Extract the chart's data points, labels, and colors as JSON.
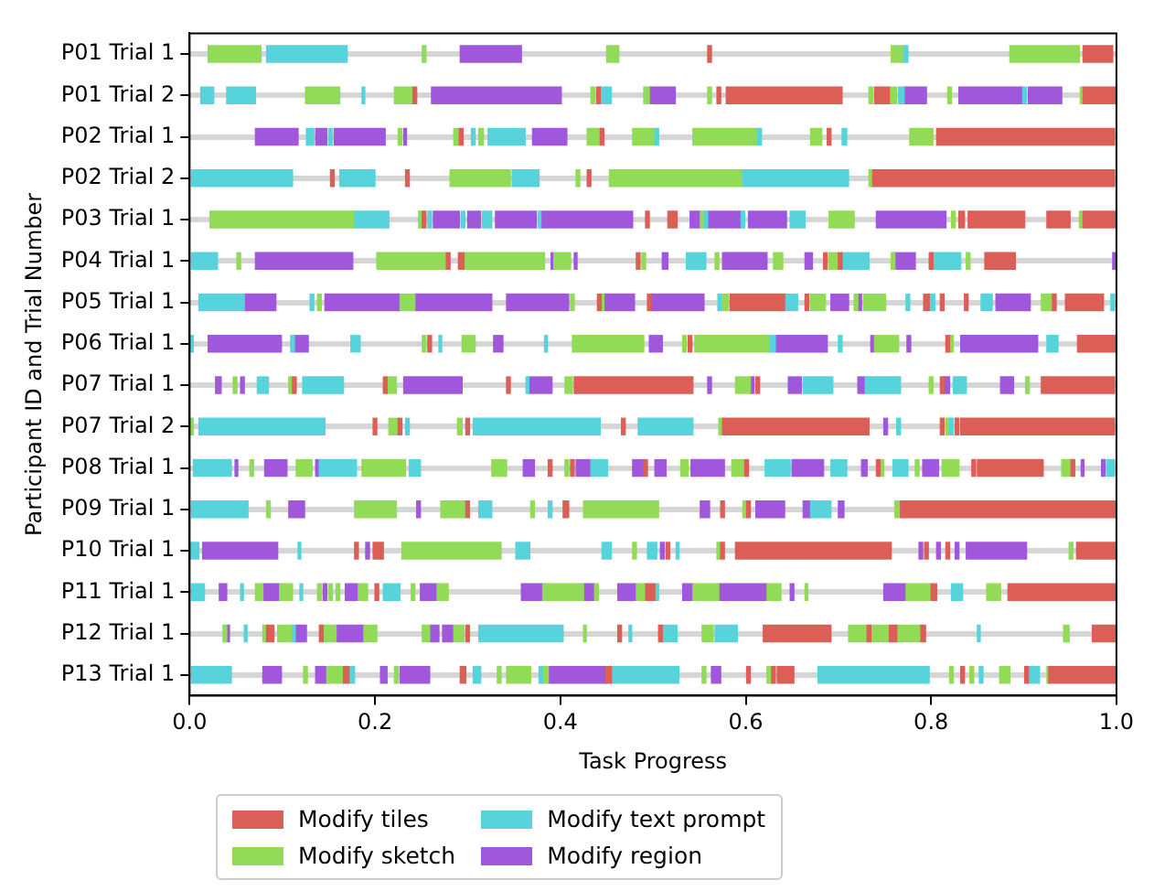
{
  "chart_data": {
    "type": "bar",
    "orientation": "horizontal",
    "xlabel": "Task Progress",
    "ylabel": "Participant ID and Trial Number",
    "categories": [
      "P01 Trial 1",
      "P01 Trial 2",
      "P02 Trial 1",
      "P02 Trial 2",
      "P03 Trial 1",
      "P04 Trial 1",
      "P05 Trial 1",
      "P06 Trial 1",
      "P07 Trial 1",
      "P07 Trial 2",
      "P08 Trial 1",
      "P09 Trial 1",
      "P10 Trial 1",
      "P11 Trial 1",
      "P12 Trial 1",
      "P13 Trial 1"
    ],
    "xlim": [
      0,
      1
    ],
    "xticks": [
      {
        "value": 0,
        "label": "0.0"
      },
      {
        "value": 0.2,
        "label": "0.2"
      },
      {
        "value": 0.4,
        "label": "0.4"
      },
      {
        "value": 0.6,
        "label": "0.6"
      },
      {
        "value": 0.8,
        "label": "0.8"
      },
      {
        "value": 1,
        "label": "1.0"
      }
    ],
    "grid": "y",
    "legend": "bottom",
    "series": [
      {
        "name": "Modify tiles",
        "color": "#db5f57",
        "base": [
          0.559,
          0.241,
          0.291,
          0.152,
          0.251,
          0.277,
          0.44,
          0.257,
          0.111,
          0.198,
          0.387,
          0.298,
          0.178,
          0.2,
          0.083,
          0.166
        ],
        "values": [
          0.004,
          0.004,
          0.004,
          0.004,
          0.004,
          0.004,
          0.004,
          0.004,
          0.004,
          0.004,
          0.004,
          0.004,
          0.004,
          0.004,
          0.008,
          0.006
        ]
      },
      {
        "color": "#db5f57",
        "base": [
          0.964,
          0.439,
          0.443,
          0.233,
          0.492,
          0.29,
          0.494,
          0.538,
          0.209,
          0.225,
          0.411,
          0.403,
          0.198,
          0.492,
          0.14,
          0.292
        ],
        "values": [
          0.032,
          0.004,
          0.004,
          0.004,
          0.004,
          0.006,
          0.004,
          0.004,
          0.004,
          0.004,
          0.004,
          0.006,
          0.011,
          0.01,
          0.004,
          0.006
        ]
      },
      {
        "color": "#db5f57",
        "base": [
          null,
          0.569,
          0.688,
          0.429,
          0.516,
          0.482,
          0.583,
          0.816,
          0.342,
          0.298,
          0.49,
          0.573,
          0.514,
          0.8,
          0.298,
          0.449
        ],
        "values": [
          null,
          0.004,
          0.004,
          0.004,
          0.01,
          0.004,
          0.059,
          0.004,
          0.004,
          0.004,
          0.004,
          0.004,
          0.004,
          0.006,
          0.004,
          0.006
        ]
      },
      {
        "color": "#db5f57",
        "base": [
          null,
          0.579,
          0.806,
          0.737,
          0.83,
          0.684,
          0.664,
          0.958,
          0.415,
          0.466,
          0.599,
          0.601,
          0.573,
          0.883,
          0.462,
          0.601
        ],
        "values": [
          null,
          0.125,
          0.192,
          0.261,
          0.006,
          0.004,
          0.004,
          0.042,
          0.128,
          0.004,
          0.004,
          0.004,
          0.004,
          0.117,
          0.004,
          0.004
        ]
      },
      {
        "color": "#db5f57",
        "base": [
          null,
          0.739,
          null,
          null,
          0.84,
          0.7,
          0.792,
          null,
          0.611,
          0.575,
          0.741,
          0.767,
          0.589,
          null,
          0.506,
          0.628
        ],
        "values": [
          null,
          0.016,
          null,
          null,
          0.061,
          0.004,
          0.006,
          null,
          0.004,
          0.158,
          0.004,
          0.233,
          0.168,
          null,
          0.004,
          0.004
        ]
      },
      {
        "color": "#db5f57",
        "base": [
          null,
          0.964,
          null,
          null,
          0.925,
          0.798,
          0.81,
          null,
          0.81,
          0.81,
          0.844,
          null,
          0.793,
          null,
          0.619,
          0.634
        ],
        "values": [
          null,
          0.036,
          null,
          null,
          0.025,
          0.004,
          0.004,
          null,
          0.004,
          0.004,
          0.004,
          null,
          0.004,
          null,
          0.073,
          0.018
        ]
      },
      {
        "color": "#db5f57",
        "base": [
          null,
          null,
          null,
          null,
          0.964,
          0.858,
          0.836,
          null,
          0.919,
          0.826,
          0.85,
          null,
          0.816,
          null,
          0.731,
          0.832
        ],
        "values": [
          null,
          null,
          null,
          null,
          0.036,
          0.033,
          0.004,
          null,
          0.079,
          0.004,
          0.071,
          null,
          0.004,
          null,
          0.004,
          0.004
        ]
      },
      {
        "color": "#db5f57",
        "base": [
          null,
          null,
          null,
          null,
          null,
          null,
          0.931,
          null,
          null,
          0.832,
          0.951,
          null,
          0.957,
          null,
          0.755,
          0.901
        ],
        "values": [
          null,
          null,
          null,
          null,
          null,
          null,
          0.004,
          null,
          null,
          0.166,
          0.004,
          null,
          0.043,
          null,
          0.008,
          0.004
        ]
      },
      {
        "color": "#db5f57",
        "base": [
          null,
          null,
          null,
          null,
          null,
          null,
          0.945,
          null,
          null,
          null,
          null,
          null,
          null,
          null,
          0.789,
          0.927
        ],
        "values": [
          null,
          null,
          null,
          null,
          null,
          null,
          0.041,
          null,
          null,
          null,
          null,
          null,
          null,
          null,
          0.005,
          0.073
        ]
      },
      {
        "color": "#db5f57",
        "base": [
          null,
          null,
          null,
          null,
          null,
          null,
          null,
          null,
          null,
          null,
          null,
          null,
          null,
          null,
          0.974,
          null
        ],
        "values": [
          null,
          null,
          null,
          null,
          null,
          null,
          null,
          null,
          null,
          null,
          null,
          null,
          null,
          null,
          0.026,
          null
        ]
      },
      {
        "name": "Modify text prompt",
        "color": "#57d3db",
        "base": [
          0.083,
          0.012,
          0.126,
          0.002,
          0.178,
          0.002,
          0.01,
          0,
          0.073,
          0.01,
          0.004,
          0.002,
          0,
          0.002,
          0.059,
          0.002
        ],
        "values": [
          0.087,
          0.014,
          0.008,
          0.109,
          0.037,
          0.028,
          0.049,
          0.004,
          0.012,
          0.136,
          0.041,
          0.061,
          0.01,
          0.014,
          0.003,
          0.043
        ]
      },
      {
        "color": "#57d3db",
        "base": [
          0.771,
          0.04,
          0.15,
          0.162,
          0.257,
          0.536,
          0.13,
          0.109,
          0.122,
          0.233,
          0.14,
          0.312,
          0.117,
          0.055,
          0.111,
          0.172
        ],
        "values": [
          0.004,
          0.031,
          0.004,
          0.038,
          0.004,
          0.021,
          0.004,
          0.004,
          0.044,
          0.004,
          0.04,
          0.014,
          0.003,
          0.003,
          0.003,
          0.006
        ]
      },
      {
        "color": "#57d3db",
        "base": [
          null,
          0.186,
          0.304,
          0.348,
          0.293,
          0.704,
          0.57,
          0.174,
          0.363,
          0.306,
          0.237,
          0.387,
          0.352,
          0.119,
          0.312,
          0.306
        ],
        "values": [
          null,
          0.003,
          0.004,
          0.029,
          0.004,
          0.029,
          0.004,
          0.01,
          0.003,
          0.137,
          0.012,
          0.004,
          0.015,
          0.003,
          0.091,
          0.008
        ]
      },
      {
        "color": "#57d3db",
        "base": [
          null,
          0.443,
          0.322,
          0.597,
          0.316,
          0.802,
          0.642,
          0.269,
          0.662,
          0.484,
          0.433,
          0.67,
          0.445,
          0.209,
          0.474,
          0.377
        ],
        "values": [
          null,
          0.012,
          0.04,
          0.114,
          0.01,
          0.03,
          0.014,
          0.003,
          0.032,
          0.059,
          0.018,
          0.022,
          0.01,
          0.018,
          0.003,
          0.004
        ]
      },
      {
        "color": "#57d3db",
        "base": [
          null,
          0.765,
          0.502,
          null,
          0.376,
          null,
          0.773,
          0.383,
          0.729,
          0.763,
          0.621,
          null,
          0.494,
          0.502,
          0.51,
          0.455
        ],
        "values": [
          null,
          0.006,
          0.004,
          null,
          0.003,
          null,
          0.004,
          0.003,
          0.038,
          0.004,
          0.027,
          null,
          0.01,
          0.004,
          0.016,
          0.073
        ]
      },
      {
        "color": "#57d3db",
        "base": [
          null,
          0.899,
          0.613,
          null,
          0.555,
          null,
          0.798,
          0.626,
          0.824,
          0.82,
          0.692,
          null,
          0.525,
          0.822,
          0.567,
          0.678
        ],
        "values": [
          null,
          0.004,
          0.004,
          null,
          0.004,
          null,
          0.006,
          0.006,
          0.014,
          0.004,
          0.017,
          null,
          0.003,
          0.012,
          0.024,
          0.12
        ]
      },
      {
        "color": "#57d3db",
        "base": [
          null,
          null,
          0.704,
          null,
          0.595,
          null,
          0.854,
          0.7,
          null,
          null,
          0.759,
          null,
          null,
          null,
          0.85,
          0.852
        ],
        "values": [
          null,
          null,
          0.005,
          null,
          0.004,
          null,
          0.012,
          0.004,
          null,
          null,
          0.016,
          null,
          null,
          null,
          0.003,
          0.004
        ]
      },
      {
        "color": "#57d3db",
        "base": [
          null,
          null,
          null,
          null,
          0.648,
          null,
          0.994,
          0.925,
          null,
          null,
          0.99,
          null,
          null,
          null,
          null,
          0.905
        ],
        "values": [
          null,
          null,
          null,
          null,
          0.016,
          null,
          0.004,
          0.012,
          null,
          null,
          0.008,
          null,
          null,
          null,
          null,
          0.012
        ]
      },
      {
        "name": "Modify sketch",
        "color": "#91db57",
        "base": [
          0.02,
          0.125,
          0.225,
          0.281,
          0.022,
          0.051,
          0.138,
          0.251,
          0.047,
          0,
          0.065,
          0.083,
          0.229,
          0.071,
          0.036,
          0.123
        ],
        "values": [
          0.057,
          0.037,
          0.004,
          0.065,
          0.156,
          0.004,
          0.004,
          0.004,
          0.004,
          0.004,
          0.004,
          0.004,
          0.107,
          0.008,
          0.004,
          0.004
        ]
      },
      {
        "color": "#91db57",
        "base": [
          0.251,
          0.221,
          0.285,
          0.417,
          0.247,
          0.202,
          0.227,
          0.294,
          0.107,
          0.215,
          0.115,
          0.178,
          0.478,
          0.097,
          0.079,
          0.148
        ],
        "values": [
          0.004,
          0.02,
          0.005,
          0.004,
          0.004,
          0.075,
          0.016,
          0.014,
          0.004,
          0.01,
          0.017,
          0.045,
          0.004,
          0.014,
          0.004,
          0.018
        ]
      },
      {
        "color": "#91db57",
        "base": [
          0.45,
          0.433,
          0.312,
          0.453,
          0.551,
          0.296,
          0.411,
          0.413,
          0.213,
          0.289,
          0.186,
          0.271,
          0.569,
          0.138,
          0.095,
          0.221
        ],
        "values": [
          0.013,
          0.004,
          0.005,
          0.144,
          0.004,
          0.087,
          0.004,
          0.077,
          0.01,
          0.005,
          0.047,
          0.027,
          0.004,
          0.004,
          0.016,
          0.004
        ]
      },
      {
        "color": "#91db57",
        "base": [
          0.757,
          0.49,
          0.429,
          0.733,
          0.69,
          0.393,
          0.444,
          0.532,
          0.405,
          0.571,
          0.326,
          0.368,
          0.949,
          0.15,
          0.144,
          0.332
        ],
        "values": [
          0.014,
          0.006,
          0.014,
          0.004,
          0.027,
          0.018,
          0.003,
          0.004,
          0.008,
          0.004,
          0.016,
          0.004,
          0.004,
          0.004,
          0.014,
          0.004
        ]
      },
      {
        "color": "#91db57",
        "base": [
          0.885,
          0.559,
          0.478,
          null,
          0.822,
          0.488,
          0.575,
          0.545,
          0.589,
          0.816,
          0.405,
          0.425,
          null,
          0.158,
          0.188,
          0.342
        ],
        "values": [
          0.075,
          0.004,
          0.024,
          null,
          0.004,
          0.004,
          0.006,
          0.081,
          0.016,
          0.004,
          0.004,
          0.081,
          null,
          0.004,
          0.014,
          0.026
        ]
      },
      {
        "color": "#91db57",
        "base": [
          null,
          0.733,
          0.543,
          null,
          0.96,
          0.567,
          0.67,
          0.739,
          0.798,
          null,
          0.53,
          0.597,
          null,
          0.182,
          0.251,
          0.381
        ],
        "values": [
          null,
          0.004,
          0.07,
          null,
          0.004,
          0.004,
          0.016,
          0.026,
          0.004,
          null,
          0.008,
          0.004,
          null,
          0.01,
          0.008,
          0.006
        ]
      },
      {
        "color": "#91db57",
        "base": [
          null,
          0.755,
          0.67,
          null,
          null,
          0.63,
          0.717,
          0.82,
          0.902,
          null,
          0.585,
          0.761,
          null,
          0.239,
          0.285,
          0.553
        ],
        "values": [
          null,
          0.008,
          0.012,
          null,
          null,
          0.01,
          0.004,
          0.004,
          0.004,
          null,
          0.014,
          0.006,
          null,
          0.004,
          0.011,
          0.004
        ]
      },
      {
        "color": "#91db57",
        "base": [
          null,
          0.818,
          0.777,
          null,
          null,
          0.69,
          0.727,
          null,
          null,
          null,
          0.745,
          null,
          null,
          0.267,
          0.425,
          0.623
        ],
        "values": [
          null,
          0.004,
          0.025,
          null,
          null,
          0.01,
          0.024,
          null,
          null,
          null,
          0.004,
          null,
          null,
          0.012,
          0.003,
          0.005
        ]
      },
      {
        "color": "#91db57",
        "base": [
          null,
          0.961,
          null,
          null,
          null,
          0.757,
          0.919,
          null,
          null,
          null,
          0.783,
          null,
          null,
          0.381,
          0.553,
          0.82
        ],
        "values": [
          null,
          0.003,
          null,
          null,
          null,
          0.004,
          0.012,
          null,
          null,
          null,
          0.004,
          null,
          null,
          0.044,
          0.012,
          0.004
        ]
      },
      {
        "color": "#91db57",
        "base": [
          null,
          null,
          null,
          null,
          null,
          0.838,
          null,
          null,
          null,
          null,
          0.812,
          null,
          null,
          0.437,
          0.711,
          0.842
        ],
        "values": [
          null,
          null,
          null,
          null,
          null,
          0.004,
          null,
          null,
          null,
          null,
          0.018,
          null,
          null,
          0.004,
          0.02,
          0.004
        ]
      },
      {
        "color": "#91db57",
        "base": [
          null,
          null,
          null,
          null,
          null,
          null,
          null,
          null,
          null,
          null,
          0.941,
          null,
          null,
          0.482,
          0.735,
          0.874
        ],
        "values": [
          null,
          null,
          null,
          null,
          null,
          null,
          null,
          null,
          null,
          null,
          0.01,
          null,
          null,
          0.01,
          0.02,
          0.011
        ]
      },
      {
        "color": "#91db57",
        "base": [
          null,
          null,
          null,
          null,
          null,
          null,
          null,
          null,
          null,
          null,
          null,
          null,
          null,
          0.543,
          0.763,
          0.925
        ],
        "values": [
          null,
          null,
          null,
          null,
          null,
          null,
          null,
          null,
          null,
          null,
          null,
          null,
          null,
          0.028,
          0.026,
          0.002
        ]
      },
      {
        "color": "#91db57",
        "base": [
          null,
          null,
          null,
          null,
          null,
          null,
          null,
          null,
          null,
          null,
          null,
          null,
          null,
          0.623,
          0.943,
          null
        ],
        "values": [
          null,
          null,
          null,
          null,
          null,
          null,
          null,
          null,
          null,
          null,
          null,
          null,
          null,
          0.015,
          0.006,
          null
        ]
      },
      {
        "color": "#91db57",
        "base": [
          null,
          null,
          null,
          null,
          null,
          null,
          null,
          null,
          null,
          null,
          null,
          null,
          null,
          0.664,
          null,
          null
        ],
        "values": [
          null,
          null,
          null,
          null,
          null,
          null,
          null,
          null,
          null,
          null,
          null,
          null,
          null,
          0.003,
          null,
          null
        ]
      },
      {
        "color": "#91db57",
        "base": [
          null,
          null,
          null,
          null,
          null,
          null,
          null,
          null,
          null,
          null,
          null,
          null,
          null,
          0.773,
          null,
          null
        ],
        "values": [
          null,
          null,
          null,
          null,
          null,
          null,
          null,
          null,
          null,
          null,
          null,
          null,
          null,
          0.027,
          null,
          null
        ]
      },
      {
        "color": "#91db57",
        "base": [
          null,
          null,
          null,
          null,
          null,
          null,
          null,
          null,
          null,
          null,
          null,
          null,
          null,
          0.86,
          null,
          null
        ],
        "values": [
          null,
          null,
          null,
          null,
          null,
          null,
          null,
          null,
          null,
          null,
          null,
          null,
          null,
          0.015,
          null,
          null
        ]
      },
      {
        "name": "Modify region",
        "color": "#a157db",
        "base": [
          0.292,
          0.261,
          0.071,
          null,
          0.263,
          0.071,
          0.059,
          0.02,
          0.028,
          0.749,
          0.049,
          0.107,
          0.014,
          0.032,
          0.04,
          0.079
        ],
        "values": [
          0.066,
          0.14,
          0.046,
          null,
          0.028,
          0.105,
          0.034,
          0.079,
          0.006,
          0.004,
          0.003,
          0.017,
          0.081,
          0.008,
          0.003,
          0.02
        ]
      },
      {
        "color": "#a157db",
        "base": [
          null,
          0.496,
          0.136,
          null,
          0.3,
          0.39,
          0.146,
          0.113,
          0.055,
          null,
          0.081,
          0.245,
          0.19,
          0.079,
          0.114,
          0.136
        ],
        "values": [
          null,
          0.028,
          0.012,
          null,
          0.014,
          0.003,
          0.081,
          0.015,
          0.004,
          null,
          0.024,
          0.004,
          0.004,
          0.018,
          0.012,
          0.012
        ]
      },
      {
        "color": "#a157db",
        "base": [
          null,
          0.771,
          0.156,
          null,
          0.33,
          0.415,
          0.243,
          0.328,
          0.231,
          null,
          0.136,
          0.551,
          0.508,
          0.144,
          0.158,
          0.206
        ],
        "values": [
          null,
          0.024,
          0.055,
          null,
          0.044,
          0.003,
          0.083,
          0.01,
          0.063,
          null,
          0.003,
          0.01,
          0.004,
          0.004,
          0.03,
          0.007
        ]
      },
      {
        "color": "#a157db",
        "base": [
          null,
          0.83,
          0.231,
          null,
          0.379,
          0.51,
          0.342,
          0.496,
          0.366,
          null,
          0.36,
          0.611,
          0.787,
          0.168,
          0.259,
          0.227
        ],
        "values": [
          null,
          0.069,
          0.003,
          null,
          0.099,
          0.006,
          0.067,
          0.014,
          0.025,
          null,
          0.012,
          0.031,
          0.004,
          0.014,
          0.01,
          0.032
        ]
      },
      {
        "color": "#a157db",
        "base": [
          null,
          0.905,
          0.37,
          null,
          0.54,
          0.575,
          0.447,
          0.632,
          0.559,
          null,
          0.417,
          0.662,
          0.806,
          0.249,
          0.273,
          0.387
        ],
        "values": [
          null,
          0.036,
          0.037,
          null,
          0.011,
          0.048,
          0.033,
          0.056,
          0.004,
          null,
          0.016,
          0.008,
          0.004,
          0.018,
          0.012,
          0.062
        ]
      },
      {
        "color": "#a157db",
        "base": [
          null,
          null,
          null,
          null,
          0.559,
          0.664,
          0.498,
          0.735,
          0.605,
          null,
          0.478,
          0.7,
          0.826,
          0.358,
          null,
          0.563
        ],
        "values": [
          null,
          null,
          null,
          null,
          0.036,
          0.008,
          0.057,
          0.004,
          0.004,
          null,
          0.012,
          0.006,
          0.004,
          0.023,
          null,
          0.01
        ]
      },
      {
        "color": "#a157db",
        "base": [
          null,
          null,
          null,
          null,
          0.603,
          0.759,
          0.692,
          0.774,
          0.646,
          null,
          0.502,
          null,
          0.838,
          0.425,
          null,
          null
        ],
        "values": [
          null,
          null,
          null,
          null,
          0.041,
          0.024,
          0.019,
          0.004,
          0.014,
          null,
          0.012,
          null,
          0.065,
          0.012,
          null,
          null
        ]
      },
      {
        "color": "#a157db",
        "base": [
          null,
          null,
          null,
          null,
          0.741,
          0.996,
          0.721,
          0.832,
          0.721,
          null,
          0.541,
          null,
          null,
          0.462,
          null,
          null
        ],
        "values": [
          null,
          null,
          null,
          null,
          0.075,
          0.004,
          0.004,
          0.083,
          0.008,
          null,
          0.036,
          null,
          null,
          0.02,
          null,
          null
        ]
      },
      {
        "color": "#a157db",
        "base": [
          null,
          null,
          null,
          null,
          null,
          null,
          0.87,
          null,
          0.814,
          null,
          0.65,
          null,
          null,
          0.532,
          null,
          null
        ],
        "values": [
          null,
          null,
          null,
          null,
          null,
          null,
          0.037,
          null,
          0.006,
          null,
          0.034,
          null,
          null,
          0.011,
          null,
          null
        ]
      },
      {
        "color": "#a157db",
        "base": [
          null,
          null,
          null,
          null,
          null,
          null,
          null,
          null,
          0.875,
          null,
          0.725,
          null,
          null,
          0.571,
          null,
          null
        ],
        "values": [
          null,
          null,
          null,
          null,
          null,
          null,
          null,
          null,
          0.014,
          null,
          0.006,
          null,
          null,
          0.052,
          null,
          null
        ]
      },
      {
        "color": "#a157db",
        "base": [
          null,
          null,
          null,
          null,
          null,
          null,
          null,
          null,
          null,
          null,
          0.791,
          null,
          null,
          0.648,
          null,
          null
        ],
        "values": [
          null,
          null,
          null,
          null,
          null,
          null,
          null,
          null,
          null,
          null,
          0.017,
          null,
          null,
          0.004,
          null,
          null
        ]
      },
      {
        "color": "#a157db",
        "base": [
          null,
          null,
          null,
          null,
          null,
          null,
          null,
          null,
          null,
          null,
          0.962,
          null,
          null,
          0.749,
          null,
          null
        ],
        "values": [
          null,
          null,
          null,
          null,
          null,
          null,
          null,
          null,
          null,
          null,
          0.003,
          null,
          null,
          0.024,
          null,
          null
        ]
      },
      {
        "color": "#a157db",
        "base": [
          null,
          null,
          null,
          null,
          null,
          null,
          null,
          null,
          null,
          null,
          0.984,
          null,
          null,
          null,
          null,
          null
        ],
        "values": [
          null,
          null,
          null,
          null,
          null,
          null,
          null,
          null,
          null,
          null,
          0.004,
          null,
          null,
          null,
          null,
          null
        ]
      }
    ]
  }
}
